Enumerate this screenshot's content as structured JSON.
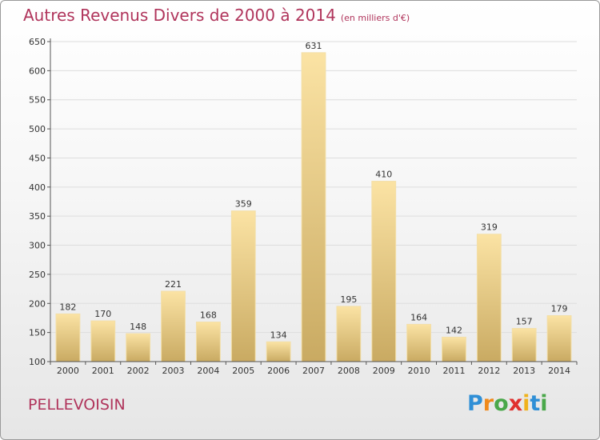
{
  "title": "Autres Revenus Divers de 2000 à 2014",
  "title_unit": "(en milliers d'€)",
  "commune": "PELLEVOISIN",
  "logo": {
    "letters": [
      "P",
      "r",
      "o",
      "x",
      "i",
      "t",
      "i"
    ],
    "colors": [
      "#2f8fd6",
      "#f08a1c",
      "#4aa84a",
      "#e0312f",
      "#f0b21c",
      "#2f8fd6",
      "#4aa84a"
    ]
  },
  "colors": {
    "bar_top": "#fbe3a4",
    "bar_bottom": "#c9aa62",
    "grid": "#dddddd",
    "axis": "#555555"
  },
  "chart_data": {
    "type": "bar",
    "title": "Autres Revenus Divers de 2000 à 2014",
    "xlabel": "",
    "ylabel": "",
    "categories": [
      "2000",
      "2001",
      "2002",
      "2003",
      "2004",
      "2005",
      "2006",
      "2007",
      "2008",
      "2009",
      "2010",
      "2011",
      "2012",
      "2013",
      "2014"
    ],
    "values": [
      182,
      170,
      148,
      221,
      168,
      359,
      134,
      631,
      195,
      410,
      164,
      142,
      319,
      157,
      179
    ],
    "ylim": [
      100,
      650
    ],
    "yticks": [
      100,
      150,
      200,
      250,
      300,
      350,
      400,
      450,
      500,
      550,
      600,
      650
    ],
    "grid": true,
    "legend": "none"
  }
}
